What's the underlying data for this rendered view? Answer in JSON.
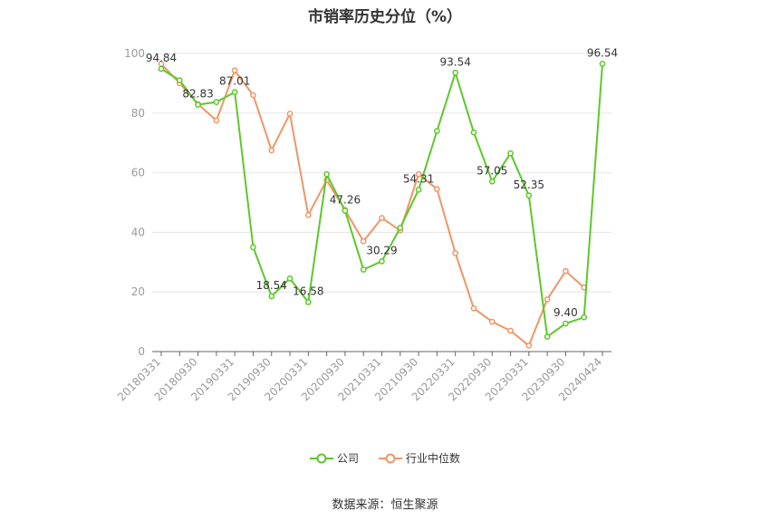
{
  "title": "市销率历史分位（%）",
  "source": "数据来源：恒生聚源",
  "colors": {
    "company": "#5cc82a",
    "industry": "#f09566",
    "grid": "#e6e6e6",
    "axis": "#999999"
  },
  "chart_data": {
    "type": "line",
    "title": "市销率历史分位（%）",
    "ylim": [
      0,
      100
    ],
    "y_ticks": [
      0,
      20,
      40,
      60,
      80,
      100
    ],
    "grid": true,
    "legend_position": "bottom",
    "x_tick_labels": [
      "20180331",
      "20180930",
      "20190331",
      "20190930",
      "20200331",
      "20200930",
      "20210331",
      "20210930",
      "20220331",
      "20220930",
      "20230331",
      "20230930",
      "20240424"
    ],
    "x": [
      "20180331",
      "20180630",
      "20180930",
      "20181231",
      "20190331",
      "20190630",
      "20190930",
      "20191231",
      "20200331",
      "20200630",
      "20200930",
      "20201231",
      "20210331",
      "20210630",
      "20210930",
      "20211231",
      "20220331",
      "20220630",
      "20220930",
      "20221231",
      "20230331",
      "20230630",
      "20230930",
      "20231231",
      "20240424"
    ],
    "series": [
      {
        "name": "公司",
        "values": [
          94.84,
          91,
          82.83,
          83.7,
          87.01,
          35,
          18.54,
          24.5,
          16.58,
          59.5,
          47.26,
          27.5,
          30.29,
          41.5,
          54.31,
          74,
          93.54,
          73.5,
          57.05,
          66.5,
          52.35,
          5,
          9.4,
          11.5,
          96.54
        ],
        "labels": [
          "94.84",
          null,
          "82.83",
          null,
          "87.01",
          null,
          "18.54",
          null,
          "16.58",
          null,
          "47.26",
          null,
          "30.29",
          null,
          "54.31",
          null,
          "93.54",
          null,
          "57.05",
          null,
          "52.35",
          null,
          "9.40",
          null,
          "96.54"
        ]
      },
      {
        "name": "行业中位数",
        "values": [
          96.5,
          90,
          83,
          77.5,
          94.3,
          86,
          67.5,
          79.8,
          45.8,
          57.5,
          47.5,
          37,
          44.8,
          40.6,
          59.5,
          54.5,
          33,
          14.5,
          10,
          7,
          2,
          17.5,
          27,
          21.5,
          null
        ],
        "labels": []
      }
    ]
  }
}
